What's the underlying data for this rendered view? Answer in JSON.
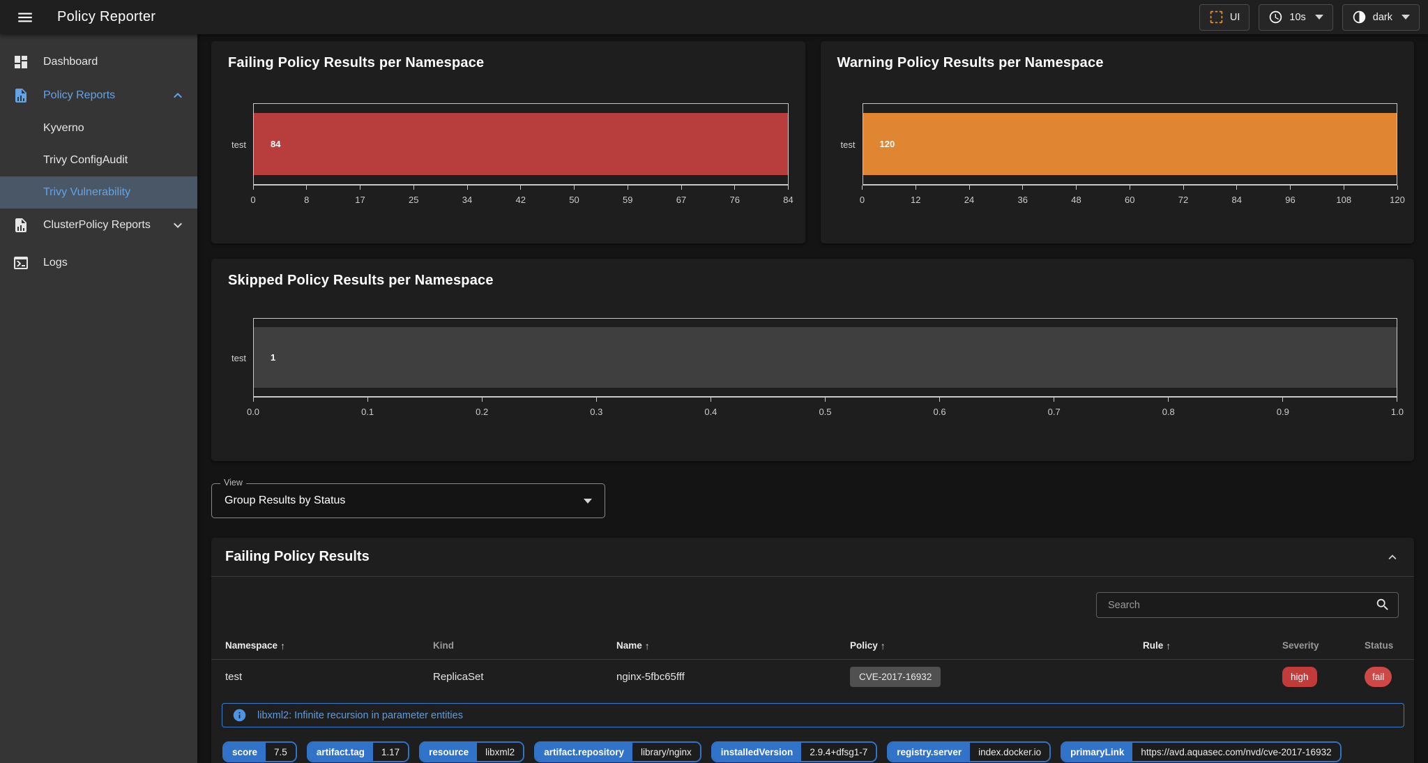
{
  "app_bar": {
    "title": "Policy Reporter",
    "menu_icon": "hamburger-menu",
    "ui_button": {
      "label": "UI",
      "icon": "selection-frame",
      "icon_color": "#e0913f"
    },
    "refresh_select": {
      "value": "10s",
      "icon": "clock"
    },
    "theme_select": {
      "value": "dark",
      "icon": "theme-light-dark"
    }
  },
  "sidebar": {
    "items": [
      {
        "label": "Dashboard",
        "icon": "view-dashboard",
        "active": false
      },
      {
        "label": "Policy Reports",
        "icon": "file-chart",
        "active": true,
        "expanded": true
      },
      {
        "label": "Kyverno",
        "active": false
      },
      {
        "label": "Trivy ConfigAudit",
        "active": false
      },
      {
        "label": "Trivy Vulnerability",
        "active": true,
        "selected": true
      },
      {
        "label": "ClusterPolicy Reports",
        "icon": "file-chart",
        "active": false,
        "expanded": false
      },
      {
        "label": "Logs",
        "icon": "console",
        "active": false
      }
    ]
  },
  "chart_data": [
    {
      "type": "bar",
      "orientation": "horizontal",
      "title": "Failing Policy Results per Namespace",
      "categories": [
        "test"
      ],
      "values": [
        84
      ],
      "xlim": [
        0,
        84
      ],
      "xticks": [
        "0",
        "8",
        "17",
        "25",
        "34",
        "42",
        "50",
        "59",
        "67",
        "76",
        "84"
      ],
      "bar_color": "#b83e3e",
      "grid": false,
      "legend": "none"
    },
    {
      "type": "bar",
      "orientation": "horizontal",
      "title": "Warning Policy Results per Namespace",
      "categories": [
        "test"
      ],
      "values": [
        120
      ],
      "xlim": [
        0,
        120
      ],
      "xticks": [
        "0",
        "12",
        "24",
        "36",
        "48",
        "60",
        "72",
        "84",
        "96",
        "108",
        "120"
      ],
      "bar_color": "#e08632",
      "grid": false,
      "legend": "none"
    },
    {
      "type": "bar",
      "orientation": "horizontal",
      "title": "Skipped Policy Results per Namespace",
      "categories": [
        "test"
      ],
      "values": [
        1
      ],
      "xlim": [
        0,
        1
      ],
      "xticks": [
        "0.0",
        "0.1",
        "0.2",
        "0.3",
        "0.4",
        "0.5",
        "0.6",
        "0.7",
        "0.8",
        "0.9",
        "1.0"
      ],
      "bar_color": "#3f3f3f",
      "grid": false,
      "legend": "none"
    }
  ],
  "view_select": {
    "label": "View",
    "value": "Group Results by Status"
  },
  "results_section": {
    "title": "Failing Policy Results",
    "search_placeholder": "Search",
    "table": {
      "columns": {
        "namespace": "Namespace",
        "kind": "Kind",
        "name": "Name",
        "policy": "Policy",
        "rule": "Rule",
        "severity": "Severity",
        "status": "Status"
      },
      "sort_arrow": "↑",
      "rows": [
        {
          "namespace": "test",
          "kind": "ReplicaSet",
          "name": "nginx-5fbc65fff",
          "policy": "CVE-2017-16932",
          "rule": "",
          "severity": "high",
          "status": "fail"
        }
      ]
    },
    "detail": {
      "message": "libxml2: Infinite recursion in parameter entities",
      "chips": [
        {
          "label": "score",
          "value": "7.5"
        },
        {
          "label": "artifact.tag",
          "value": "1.17"
        },
        {
          "label": "resource",
          "value": "libxml2"
        },
        {
          "label": "artifact.repository",
          "value": "library/nginx"
        },
        {
          "label": "installedVersion",
          "value": "2.9.4+dfsg1-7"
        },
        {
          "label": "registry.server",
          "value": "index.docker.io"
        },
        {
          "label": "primaryLink",
          "value": "https://avd.aquasec.com/nvd/cve-2017-16932"
        }
      ]
    }
  },
  "colors": {
    "accent_blue": "#3173c8",
    "link_blue": "#5f9bdd",
    "failing_red": "#b83e3e",
    "warning_orange": "#e08632",
    "skipped_gray": "#3f3f3f",
    "severity_chip_red": "#c23b3b",
    "status_chip_red": "#cf4848",
    "ui_icon_orange": "#e0913f",
    "sidebar_selected_bg": "#4a5766"
  }
}
